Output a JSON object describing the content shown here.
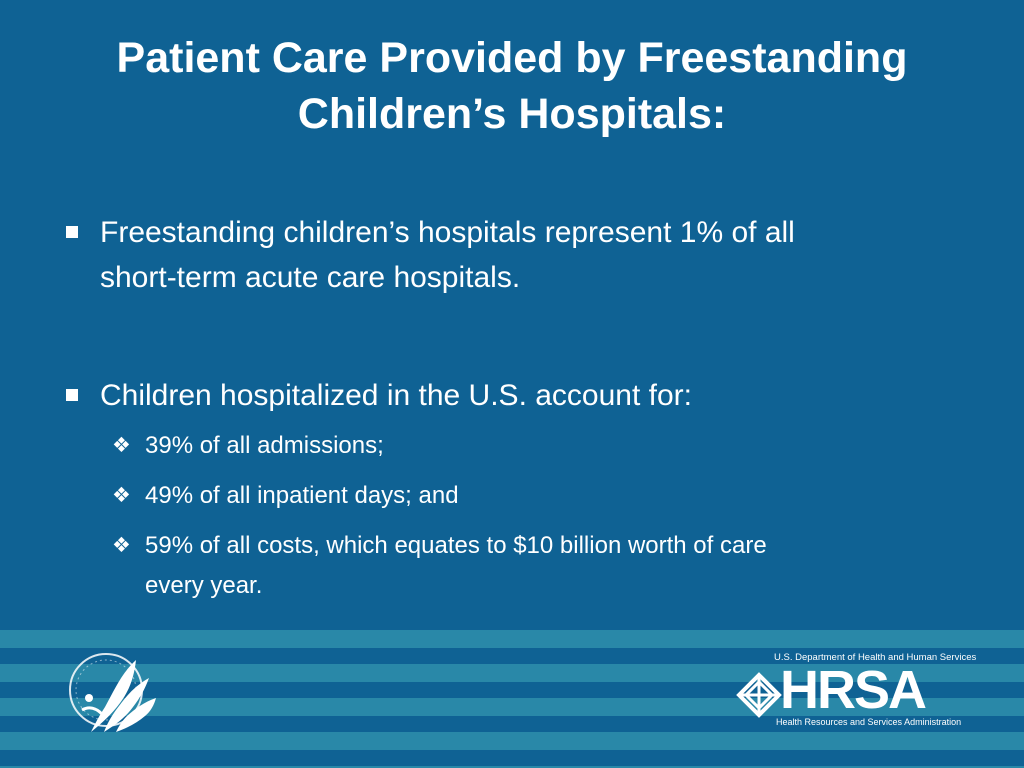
{
  "slide": {
    "title_line1": "Patient Care Provided by Freestanding",
    "title_line2": "Children’s Hospitals:"
  },
  "bullets": [
    {
      "line1": "Freestanding children’s hospitals represent 1% of all",
      "line2": "short-term acute care hospitals."
    },
    {
      "line1": "Children hospitalized in the U.S. account for:"
    }
  ],
  "sub_bullets": [
    {
      "line1": "39% of all admissions;"
    },
    {
      "line1": "49% of all inpatient days; and"
    },
    {
      "line1": "59% of all costs, which equates to $10 billion worth of care",
      "line2": "every year."
    }
  ],
  "footer": {
    "hrsa_top_text": "U.S. Department of Health and Human Services",
    "hrsa_big_text": "HRSA",
    "hrsa_bottom_text": "Health Resources and Services Administration"
  },
  "colors": {
    "background": "#0f6294",
    "stripe": "#2988a8",
    "text": "#ffffff"
  },
  "icons": {
    "square_bullet": "square-bullet-icon",
    "diamond_bullet": "four-diamond-bullet-icon",
    "hhs_logo": "hhs-eagle-seal-logo",
    "hrsa_logo": "hrsa-knot-logo"
  }
}
